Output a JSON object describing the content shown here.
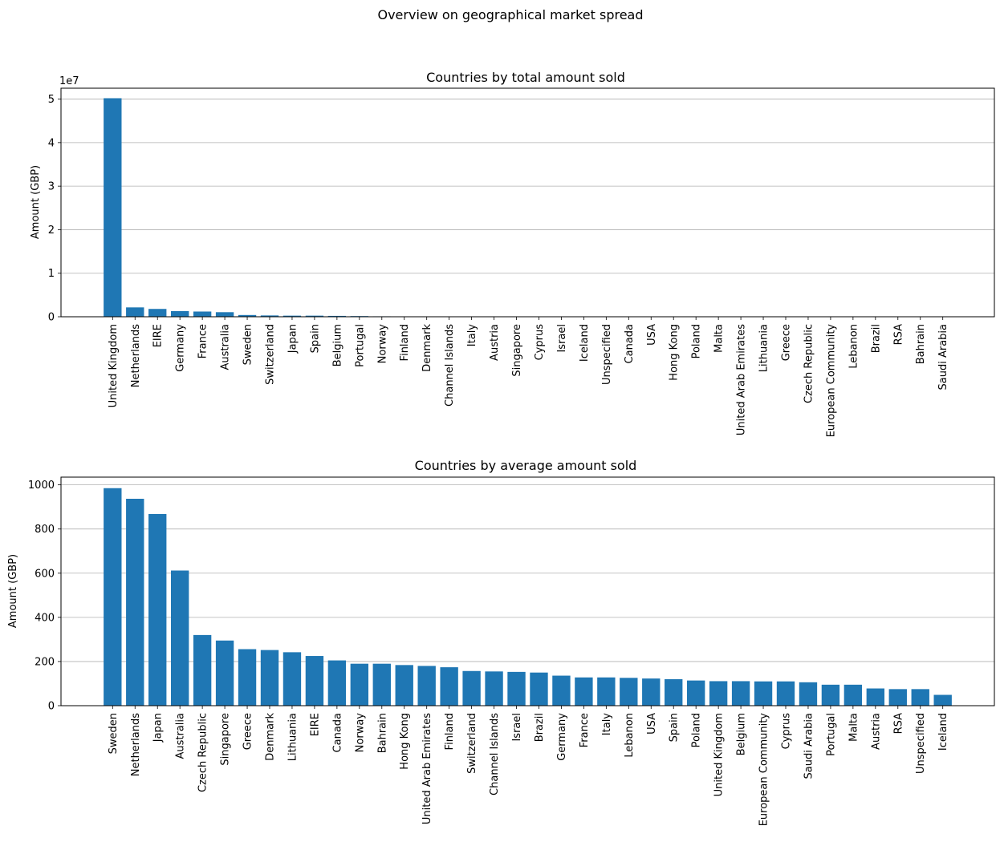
{
  "figure": {
    "suptitle": "Overview on geographical market spread"
  },
  "chart_data": [
    {
      "type": "bar",
      "title": "Countries by total amount sold",
      "xlabel": "",
      "ylabel": "Amount (GBP)",
      "y_offset_text": "1e7",
      "ylim": [
        0,
        5.25
      ],
      "yticks": [
        0,
        1,
        2,
        3,
        4,
        5
      ],
      "grid": "y",
      "bar_color": "#1f77b4",
      "categories": [
        "United Kingdom",
        "Netherlands",
        "EIRE",
        "Germany",
        "France",
        "Australia",
        "Sweden",
        "Switzerland",
        "Japan",
        "Spain",
        "Belgium",
        "Portugal",
        "Norway",
        "Finland",
        "Denmark",
        "Channel Islands",
        "Italy",
        "Austria",
        "Singapore",
        "Cyprus",
        "Israel",
        "Iceland",
        "Unspecified",
        "Canada",
        "USA",
        "Hong Kong",
        "Poland",
        "Malta",
        "United Arab Emirates",
        "Lithuania",
        "Greece",
        "Czech Republic",
        "European Community",
        "Lebanon",
        "Brazil",
        "RSA",
        "Bahrain",
        "Saudi Arabia"
      ],
      "values": [
        5.02,
        0.215,
        0.18,
        0.13,
        0.12,
        0.105,
        0.04,
        0.03,
        0.025,
        0.025,
        0.02,
        0.015,
        0.01,
        0.008,
        0.006,
        0.005,
        0.004,
        0.004,
        0.002,
        0.002,
        0.002,
        0.001,
        0.001,
        0.001,
        0.0005,
        0.0005,
        0.0005,
        0.0005,
        0.0004,
        0.0003,
        0.0002,
        0.0002,
        0.0001,
        0.0001,
        0.0001,
        0.0001,
        0.0001,
        0.0001
      ]
    },
    {
      "type": "bar",
      "title": "Countries by average amount sold",
      "xlabel": "",
      "ylabel": "Amount (GBP)",
      "ylim": [
        0,
        1035
      ],
      "yticks": [
        0,
        200,
        400,
        600,
        800,
        1000
      ],
      "grid": "y",
      "bar_color": "#1f77b4",
      "categories": [
        "Sweden",
        "Netherlands",
        "Japan",
        "Australia",
        "Czech Republic",
        "Singapore",
        "Greece",
        "Denmark",
        "Lithuania",
        "EIRE",
        "Canada",
        "Norway",
        "Bahrain",
        "Hong Kong",
        "United Arab Emirates",
        "Finland",
        "Switzerland",
        "Channel Islands",
        "Israel",
        "Brazil",
        "Germany",
        "France",
        "Italy",
        "Lebanon",
        "USA",
        "Spain",
        "Poland",
        "United Kingdom",
        "Belgium",
        "European Community",
        "Cyprus",
        "Saudi Arabia",
        "Portugal",
        "Malta",
        "Austria",
        "RSA",
        "Unspecified",
        "Iceland"
      ],
      "values": [
        985,
        937,
        868,
        612,
        320,
        295,
        256,
        252,
        242,
        225,
        205,
        190,
        190,
        184,
        180,
        174,
        157,
        155,
        153,
        150,
        136,
        128,
        128,
        126,
        123,
        120,
        114,
        111,
        111,
        110,
        110,
        106,
        95,
        95,
        78,
        75,
        75,
        49
      ]
    }
  ]
}
